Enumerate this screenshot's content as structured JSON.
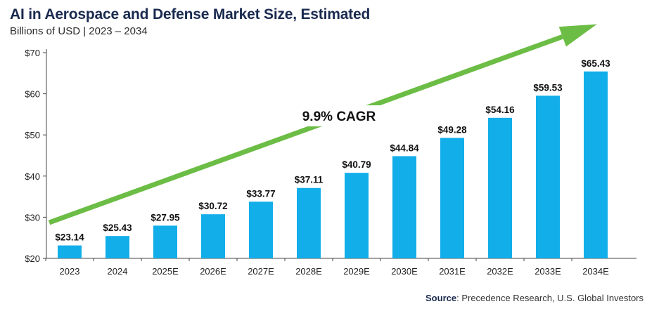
{
  "title": "AI in Aerospace and Defense Market Size, Estimated",
  "subtitle": "Billions of USD | 2023 – 2034",
  "source": {
    "label": "Source",
    "text": ": Precedence Research, U.S. Global Investors"
  },
  "colors": {
    "bar": "#12aeea",
    "arrow": "#6cbd45",
    "title": "#1a2a4f"
  },
  "chart_data": {
    "type": "bar",
    "categories": [
      "2023",
      "2024",
      "2025E",
      "2026E",
      "2027E",
      "2028E",
      "2029E",
      "2030E",
      "2031E",
      "2032E",
      "2033E",
      "2034E"
    ],
    "values": [
      23.14,
      25.43,
      27.95,
      30.72,
      33.77,
      37.11,
      40.79,
      44.84,
      49.28,
      54.16,
      59.53,
      65.43
    ],
    "data_labels": [
      "$23.14",
      "$25.43",
      "$27.95",
      "$30.72",
      "$33.77",
      "$37.11",
      "$40.79",
      "$44.84",
      "$49.28",
      "$54.16",
      "$59.53",
      "$65.43"
    ],
    "ylim": [
      20,
      70
    ],
    "yticks": [
      20,
      30,
      40,
      50,
      60,
      70
    ],
    "ytick_labels": [
      "$20",
      "$30",
      "$40",
      "$50",
      "$60",
      "$70"
    ],
    "annotation": "9.9% CAGR",
    "grid": false,
    "xlabel": "",
    "ylabel": ""
  }
}
